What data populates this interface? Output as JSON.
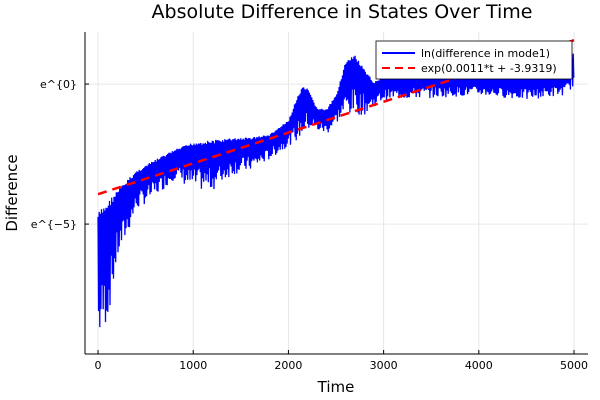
{
  "chart_data": {
    "type": "line",
    "title": "Absolute Difference in States Over Time",
    "xlabel": "Time",
    "ylabel": "Difference",
    "xlim": [
      -137,
      5147
    ],
    "ylim_log_e": [
      -9.64,
      1.86
    ],
    "yscale": "log-e",
    "xticks": [
      0,
      1000,
      2000,
      3000,
      4000,
      5000
    ],
    "xtick_labels": [
      "0",
      "1000",
      "2000",
      "3000",
      "4000",
      "5000"
    ],
    "yticks_log_e": [
      0,
      -5
    ],
    "ytick_labels": [
      "e^{0}",
      "e^{−5}"
    ],
    "grid": true,
    "legend_position": "top-right",
    "series": [
      {
        "name": "ln(difference in mode1)",
        "color": "#0000ff",
        "style": "solid",
        "description_kind": "oscillating envelope (ln units)",
        "t": [
          0,
          100,
          200,
          400,
          600,
          800,
          1000,
          1200,
          1400,
          1600,
          1800,
          2000,
          2100,
          2150,
          2200,
          2300,
          2400,
          2500,
          2600,
          2700,
          2800,
          2900,
          3000,
          3500,
          4000,
          4500,
          4900,
          5000
        ],
        "upper": [
          -4.57,
          -4.2,
          -3.8,
          -3.1,
          -2.7,
          -2.35,
          -2.07,
          -2.0,
          -1.93,
          -1.9,
          -1.8,
          -1.3,
          -0.4,
          -0.1,
          -0.15,
          -0.85,
          -0.9,
          -0.4,
          0.8,
          1.05,
          0.5,
          0.07,
          0.3,
          0.43,
          0.3,
          0.3,
          0.4,
          1.15
        ],
        "lower": [
          -9.3,
          -8.4,
          -6.3,
          -4.5,
          -4.0,
          -3.4,
          -3.8,
          -3.8,
          -3.25,
          -3.1,
          -2.7,
          -2.2,
          -2.0,
          -1.8,
          -1.65,
          -1.7,
          -1.8,
          -1.4,
          -1.1,
          -1.1,
          -1.1,
          -0.8,
          -0.57,
          -0.5,
          -0.4,
          -0.57,
          -0.4,
          -0.05
        ]
      },
      {
        "name": "exp(0.0011*t + -3.9319)",
        "color": "#ff0000",
        "style": "dashed",
        "slope": 0.0011,
        "intercept": -3.9319,
        "t_range": [
          0,
          5000
        ]
      }
    ]
  }
}
